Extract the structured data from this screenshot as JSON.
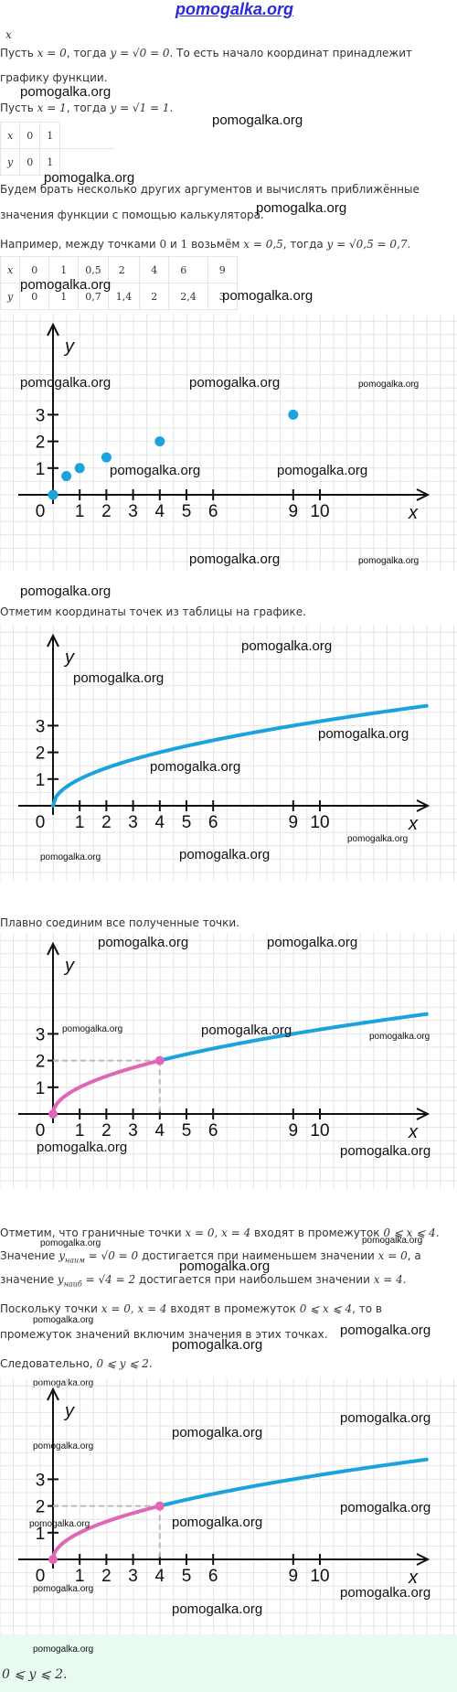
{
  "watermark": "pomogalka.org",
  "intro_x_label": "x",
  "lines": {
    "l1": {
      "a": "Пусть",
      "b": "x = 0",
      "c": ", тогда",
      "d": "y = √0 = 0",
      "e": ". То есть начало координат принадлежит"
    },
    "l2": "графику функции.",
    "l3": {
      "a": "Пусть",
      "b": "x = 1",
      "c": ", тогда",
      "d": "y = √1 = 1."
    },
    "l4": "Будем брать несколько других аргументов и вычислять приближённые",
    "l5": "значения функции с помощью калькулятора.",
    "l6": {
      "a": "Например, между точками",
      "b": "0",
      "c": "и",
      "d": "1",
      "e": "возьмём",
      "f": "x = 0,5",
      "g": ", тогда",
      "h": "y = √0,5 = 0,7."
    },
    "l7": "Отметим координаты точек из таблицы на графике.",
    "l8": "Плавно соединим все полученные точки.",
    "l9": {
      "a": "Отметим, что граничные точки",
      "b": "x = 0, x = 4",
      "c": "входят в промежуток",
      "d": "0 ⩽ x ⩽ 4."
    },
    "l10": {
      "a": "Значение",
      "b": "y",
      "sub": "наим",
      "c": "= √0 = 0",
      "d": "достигается при наименьшем значении",
      "e": "x = 0",
      "f": ", а"
    },
    "l11": {
      "a": "значение",
      "b": "y",
      "sub": "наиб",
      "c": "= √4 = 2",
      "d": "достигается при наибольшем значении",
      "e": "x = 4."
    },
    "l12": {
      "a": "Поскольку точки",
      "b": "x = 0, x = 4",
      "c": "входят в промежуток",
      "d": "0 ⩽ x ⩽ 4",
      "e": ", то в"
    },
    "l13": "промежуток значений включим значения в этих точках.",
    "l14": {
      "a": "Следовательно,",
      "b": "0 ⩽ y ⩽ 2."
    }
  },
  "table1": {
    "x": [
      "x",
      "0",
      "1"
    ],
    "y": [
      "y",
      "0",
      "1"
    ]
  },
  "table2": {
    "x": [
      "x",
      "0",
      "1",
      "0,5",
      "2",
      "4",
      "6",
      "9"
    ],
    "y": [
      "y",
      "0",
      "1",
      "0,7",
      "1,4",
      "2",
      "2,4",
      "3"
    ]
  },
  "graph": {
    "axis_x": "x",
    "axis_y": "y",
    "origin": "0",
    "x_ticks": [
      "1",
      "2",
      "3",
      "4",
      "5",
      "6",
      "9",
      "10"
    ],
    "y_ticks": [
      "1",
      "2",
      "3"
    ],
    "colors": {
      "curve": "#1ba3dd",
      "highlight": "#e066b6",
      "grid": "#e4e4e4",
      "dash": "#bbbbbb"
    }
  },
  "chart_data": [
    {
      "type": "scatter",
      "xlabel": "x",
      "ylabel": "y",
      "xlim": [
        0,
        10
      ],
      "ylim": [
        0,
        3
      ],
      "series": [
        {
          "x": [
            0,
            0.5,
            1,
            2,
            4,
            9
          ],
          "y": [
            0,
            0.7,
            1,
            1.4,
            2,
            3
          ]
        }
      ]
    },
    {
      "type": "line",
      "function": "y = √x",
      "xlabel": "x",
      "ylabel": "y",
      "xlim": [
        0,
        14
      ],
      "ylim": [
        0,
        3.6
      ]
    },
    {
      "type": "line",
      "function": "y = √x",
      "highlight_range": [
        0,
        4
      ],
      "highlight_point": [
        4,
        2
      ],
      "xlabel": "x",
      "ylabel": "y"
    },
    {
      "type": "line",
      "function": "y = √x",
      "highlight_range": [
        0,
        4
      ],
      "highlight_point": [
        4,
        2
      ],
      "xlabel": "x",
      "ylabel": "y"
    }
  ],
  "answer": "0 ⩽ y ⩽ 2."
}
